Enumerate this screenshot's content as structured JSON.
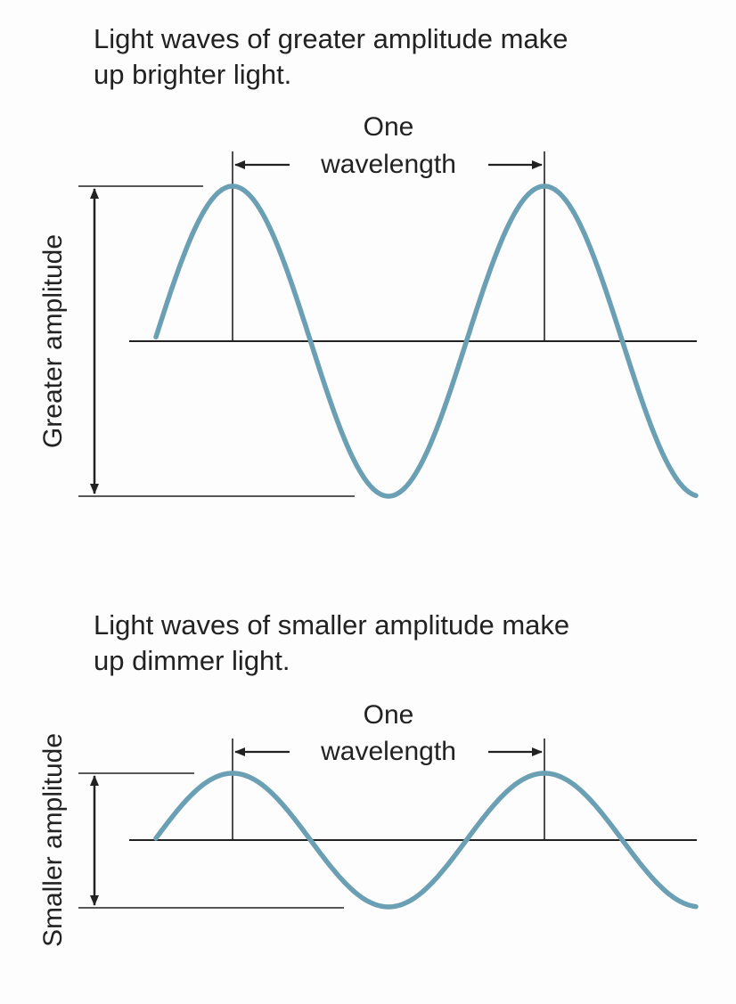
{
  "panels": [
    {
      "caption_lines": [
        "Light waves of greater amplitude make",
        "up brighter light."
      ],
      "wavelength_label_line1": "One",
      "wavelength_label_line2": "wavelength",
      "amplitude_label": "Greater amplitude"
    },
    {
      "caption_lines": [
        "Light waves of smaller amplitude make",
        "up dimmer light."
      ],
      "wavelength_label_line1": "One",
      "wavelength_label_line2": "wavelength",
      "amplitude_label": "Smaller amplitude"
    }
  ],
  "colors": {
    "wave": "#6b9fb4",
    "lines": "#222222",
    "text": "#222222",
    "background": "#fdfdfd"
  }
}
